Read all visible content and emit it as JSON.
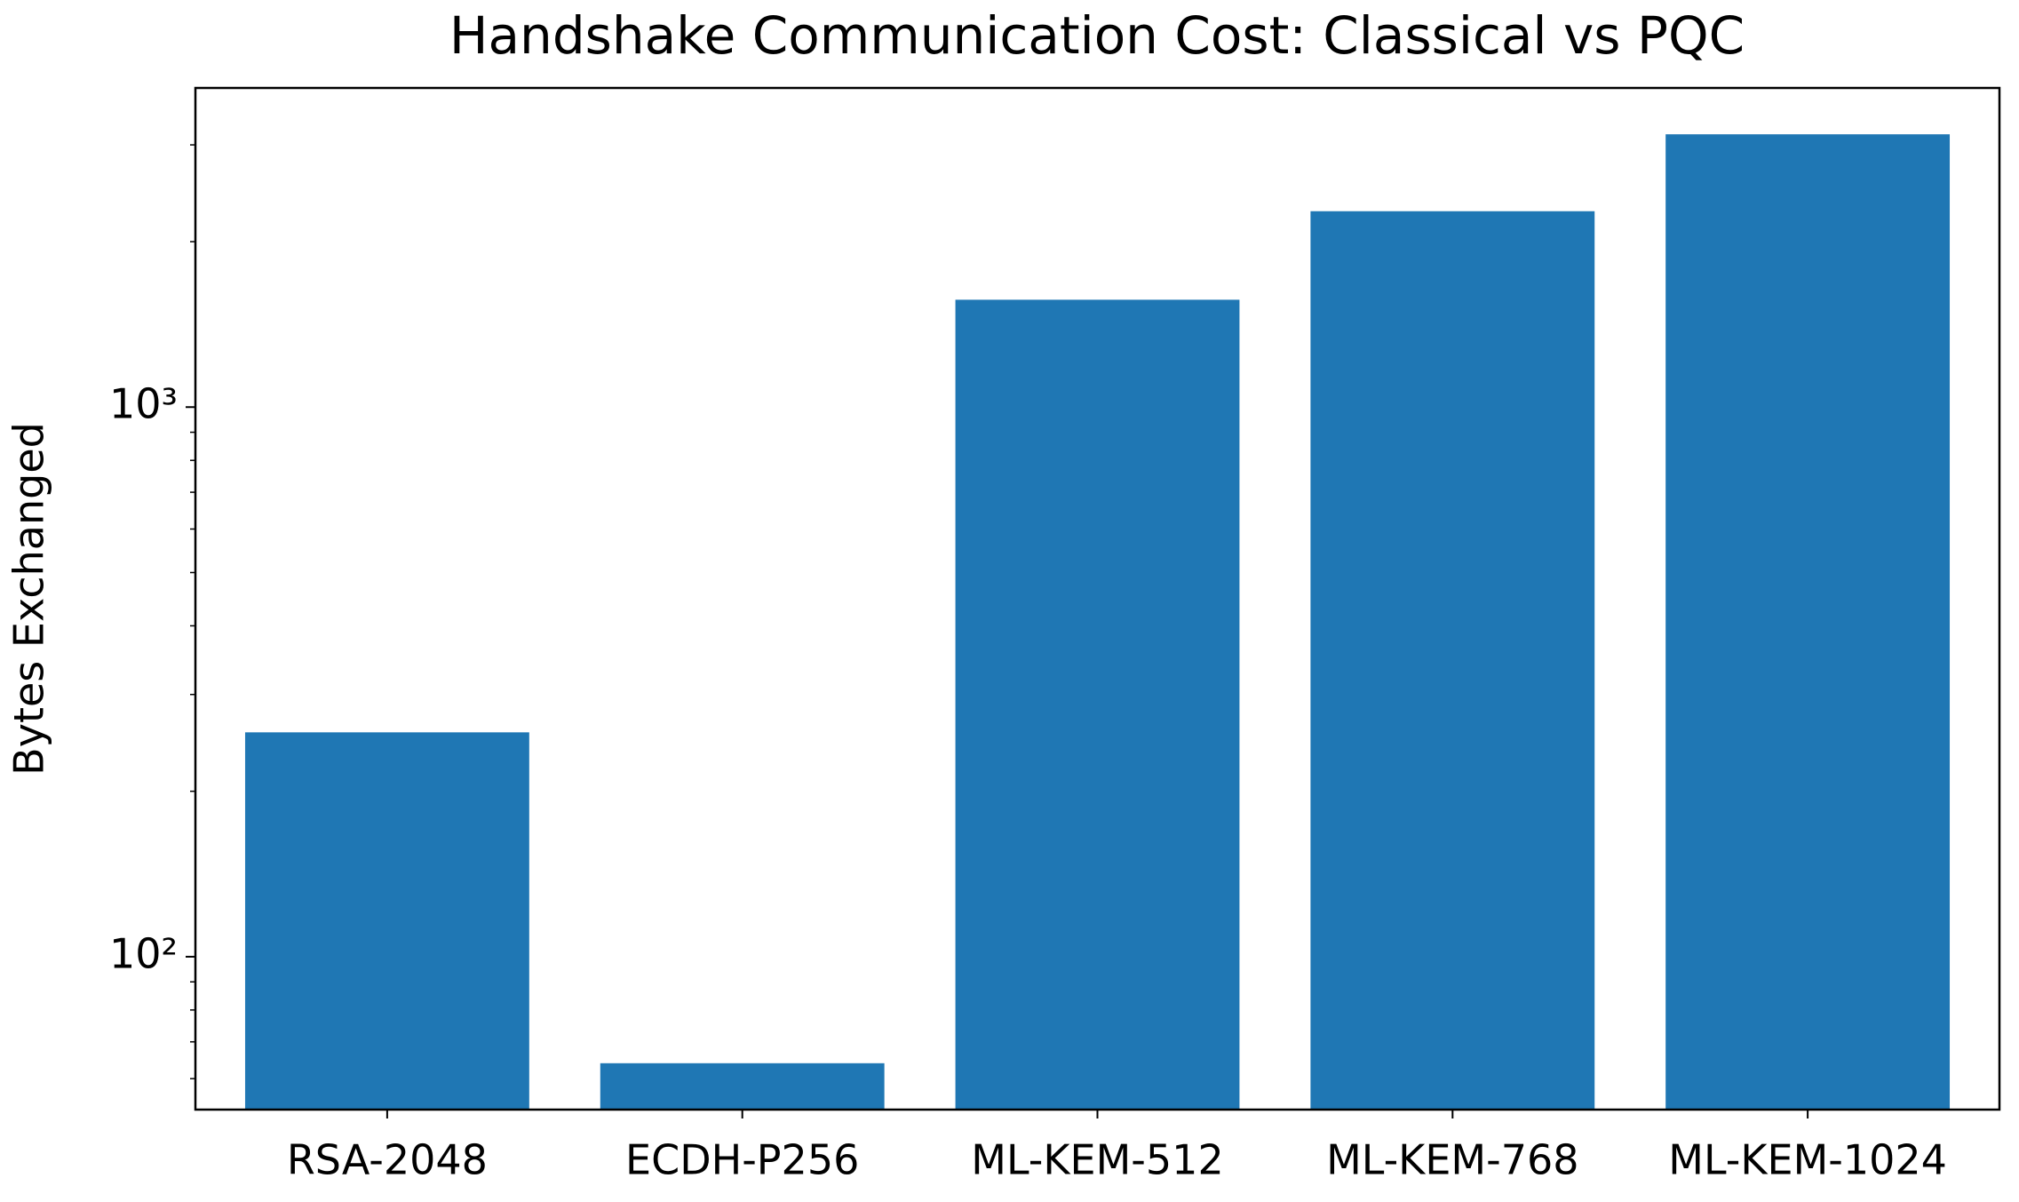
{
  "chart_data": {
    "type": "bar",
    "title": "Handshake Communication Cost: Classical vs PQC",
    "y_label": "Bytes Exchanged",
    "categories": [
      "RSA-2048",
      "ECDH-P256",
      "ML-KEM-512",
      "ML-KEM-768",
      "ML-KEM-1024"
    ],
    "values": [
      256,
      64,
      1568,
      2272,
      3136
    ],
    "color": "#1f77b4",
    "y_scale": "log",
    "ylim": [
      52.7,
      3808
    ],
    "yticks": [
      {
        "value": 100,
        "label": "10²"
      },
      {
        "value": 1000,
        "label": "10³"
      }
    ],
    "minor_yticks": [
      60,
      70,
      80,
      90,
      200,
      300,
      400,
      500,
      600,
      700,
      800,
      900,
      2000,
      3000
    ],
    "grid": false
  }
}
